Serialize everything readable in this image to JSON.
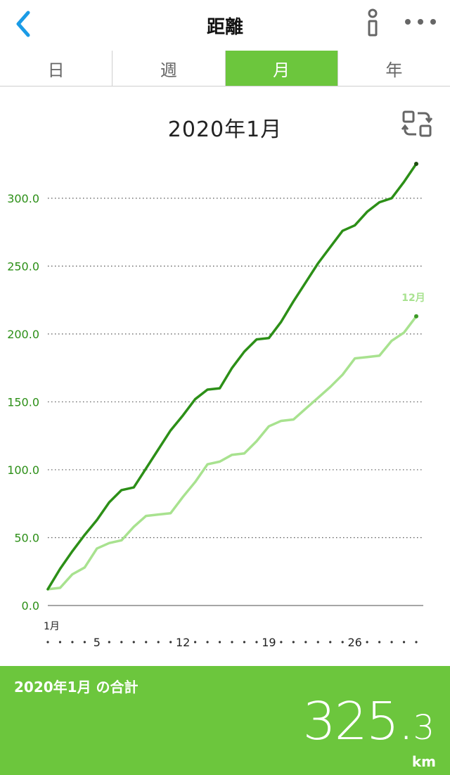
{
  "header": {
    "title": "距離",
    "back_icon": "chevron-left-icon",
    "info_icon": "info-icon",
    "more_icon": "more-horizontal-icon"
  },
  "tabs": [
    {
      "label": "日",
      "active": false
    },
    {
      "label": "週",
      "active": false
    },
    {
      "label": "月",
      "active": true
    },
    {
      "label": "年",
      "active": false
    }
  ],
  "chart_header": {
    "title": "2020年1月",
    "swap_icon": "compare-swap-icon"
  },
  "colors": {
    "accent": "#6cc63d",
    "current_series": "#2c8f17",
    "previous_series": "#a8e28f",
    "axis_text": "#2c8f17"
  },
  "chart_data": {
    "type": "line",
    "title": "2020年1月",
    "xlabel": "",
    "ylabel": "",
    "ylim": [
      0,
      325.3
    ],
    "yticks": [
      0,
      50,
      100,
      150,
      200,
      250,
      300
    ],
    "ytick_labels": [
      "0.0",
      "50.0",
      "100.0",
      "150.0",
      "200.0",
      "250.0",
      "300.0"
    ],
    "x_first_label": "1月",
    "x_tick_days": [
      5,
      12,
      19,
      26
    ],
    "x_tick_labels": [
      "5",
      "12",
      "19",
      "26"
    ],
    "grid": true,
    "series": [
      {
        "name": "",
        "x": [
          1,
          2,
          3,
          4,
          5,
          6,
          7,
          8,
          9,
          10,
          11,
          12,
          13,
          14,
          15,
          16,
          17,
          18,
          19,
          20,
          21,
          22,
          23,
          24,
          25,
          26,
          27,
          28,
          29,
          30,
          31
        ],
        "values": [
          12,
          27,
          40,
          52,
          63,
          76,
          85,
          87,
          101,
          115,
          129,
          140,
          152,
          159,
          160,
          175,
          187,
          196,
          197,
          209,
          224,
          238,
          252,
          264,
          276,
          280,
          290,
          297,
          300,
          312,
          325.3
        ]
      },
      {
        "name": "12月",
        "x": [
          1,
          2,
          3,
          4,
          5,
          6,
          7,
          8,
          9,
          10,
          11,
          12,
          13,
          14,
          15,
          16,
          17,
          18,
          19,
          20,
          21,
          22,
          23,
          24,
          25,
          26,
          27,
          28,
          29,
          30,
          31
        ],
        "values": [
          12,
          13,
          23,
          28,
          42,
          46,
          48,
          58,
          66,
          67,
          68,
          80,
          91,
          104,
          106,
          111,
          112,
          121,
          132,
          136,
          137,
          145,
          153,
          161,
          170,
          182,
          183,
          184,
          195,
          201,
          213
        ]
      }
    ]
  },
  "footer": {
    "label": "2020年1月 の合計",
    "total_int": "325",
    "total_dot": ".",
    "total_dec": "3",
    "unit": "km"
  }
}
